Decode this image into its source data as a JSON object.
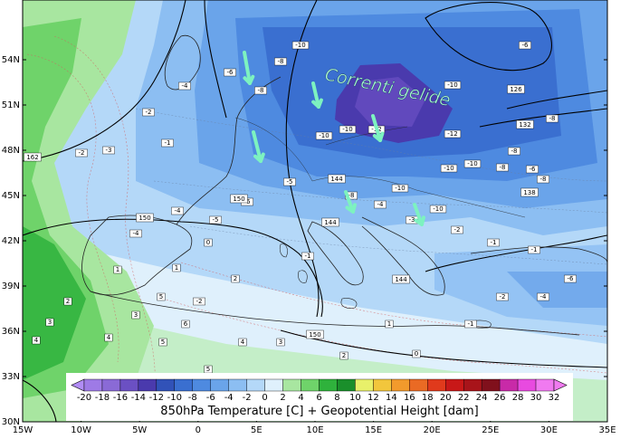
{
  "map": {
    "type": "weather-map",
    "annotation": "Correnti gelide",
    "latitudes": [
      "54N",
      "51N",
      "48N",
      "45N",
      "42N",
      "39N",
      "36N",
      "33N",
      "30N"
    ],
    "longitudes": [
      "15W",
      "10W",
      "5W",
      "0",
      "5E",
      "10E",
      "15E",
      "20E",
      "25E",
      "30E",
      "35E"
    ],
    "colorbar": {
      "title": "850hPa Temperature [C] + Geopotential Height [dam]",
      "ticks": [
        "-20",
        "-18",
        "-16",
        "-14",
        "-12",
        "-10",
        "-8",
        "-6",
        "-4",
        "-2",
        "0",
        "2",
        "4",
        "6",
        "8",
        "10",
        "12",
        "14",
        "16",
        "18",
        "20",
        "22",
        "24",
        "26",
        "28",
        "30",
        "32"
      ],
      "colors": [
        "#b18cf5",
        "#9e7ae6",
        "#8a6ad6",
        "#6b50c3",
        "#4a3aad",
        "#3152b8",
        "#3a6fd0",
        "#4e8ae0",
        "#6aa4ea",
        "#8cbef2",
        "#b4d8f8",
        "#dff0fc",
        "#a8e6a0",
        "#6fd36a",
        "#2fb23c",
        "#1a8f2b",
        "#e8f06a",
        "#f2c63c",
        "#f29a2c",
        "#ea6a24",
        "#e03a1c",
        "#c81818",
        "#a8141a",
        "#80101c",
        "#c82aa8",
        "#e84ae0",
        "#f07af0"
      ]
    },
    "temperature_labels": [
      "-6",
      "-8",
      "-8",
      "-10",
      "-10",
      "-10",
      "-12",
      "-10",
      "-6",
      "-8",
      "-10",
      "-10",
      "-10",
      "-10",
      "-8",
      "-8",
      "-6",
      "-4",
      "-2",
      "-1",
      "-2",
      "-3",
      "-4",
      "-5",
      "-6",
      "-5",
      "-8",
      "-4",
      "-3",
      "-2",
      "-1",
      "-1",
      "0",
      "1",
      "2",
      "3",
      "4",
      "5",
      "5",
      "4",
      "3",
      "2",
      "1",
      "0",
      "-1",
      "-2",
      "-4",
      "-6",
      "-8",
      "-12",
      "-4",
      "-2",
      "-1",
      "1",
      "2",
      "3",
      "4",
      "5",
      "6"
    ],
    "height_labels": [
      "162",
      "144",
      "144",
      "150",
      "150",
      "150",
      "132",
      "126",
      "138",
      "144"
    ],
    "colors": {
      "sea_warm": "#3aaa55",
      "cold_core": "#6a3fbf",
      "annotation": "#a7f5cc",
      "arrow": "#7df2c0"
    },
    "icons": [
      "cold-flow-arrow-icon"
    ]
  }
}
